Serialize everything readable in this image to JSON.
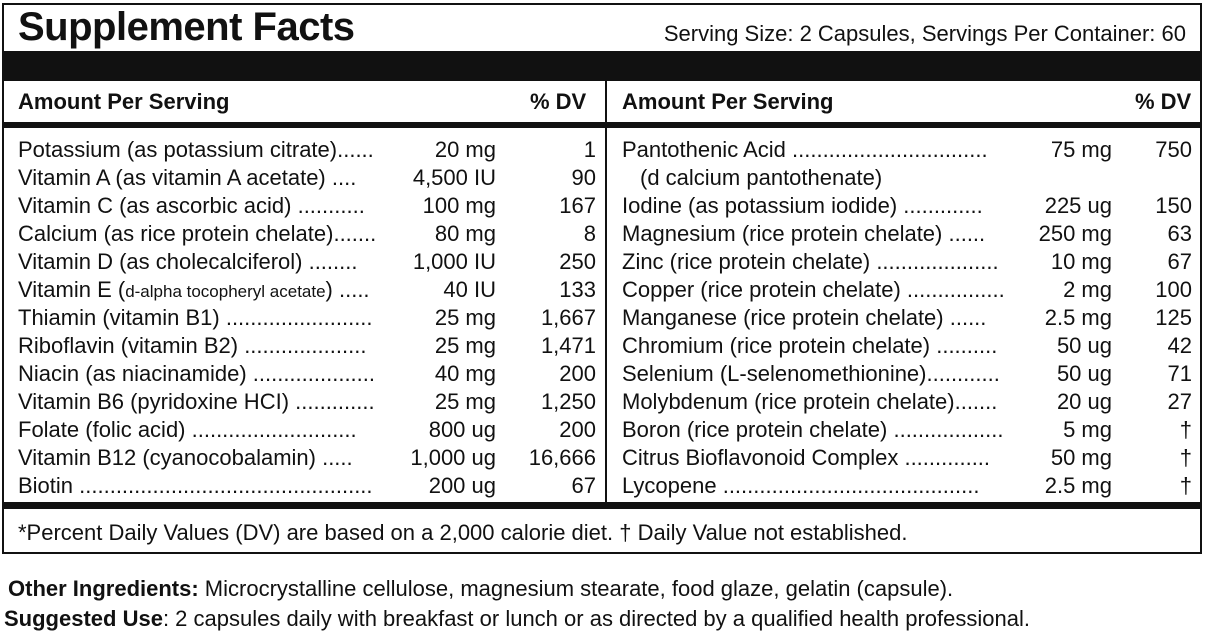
{
  "title": "Supplement Facts",
  "serving": "Serving Size: 2 Capsules,  Servings Per Container: 60",
  "headers": {
    "left_amount": "Amount Per Serving",
    "left_dv": "% DV",
    "right_amount": "Amount Per Serving",
    "right_dv": "% DV"
  },
  "left": [
    {
      "label": "Potassium (as potassium citrate)......",
      "amount": "20 mg",
      "dv": "1"
    },
    {
      "label": "Vitamin A (as vitamin A acetate) ....",
      "amount": "4,500 IU",
      "dv": "90"
    },
    {
      "label": "Vitamin C (as ascorbic acid) ...........",
      "amount": "100 mg",
      "dv": "167"
    },
    {
      "label": "Calcium (as rice protein chelate).......",
      "amount": "80 mg",
      "dv": "8"
    },
    {
      "label": "Vitamin D (as cholecalciferol) ........",
      "amount": "1,000 IU",
      "dv": "250"
    },
    {
      "label_main": "Vitamin E (",
      "label_small": "d-alpha tocopheryl acetate",
      "label_end": ") .....",
      "amount": "40 IU",
      "dv": "133"
    },
    {
      "label": "Thiamin (vitamin B1) ........................",
      "amount": "25 mg",
      "dv": "1,667"
    },
    {
      "label": "Riboflavin (vitamin B2) ....................",
      "amount": "25 mg",
      "dv": "1,471"
    },
    {
      "label": "Niacin (as niacinamide) ....................",
      "amount": "40 mg",
      "dv": "200"
    },
    {
      "label": "Vitamin B6 (pyridoxine HCI) .............",
      "amount": "25 mg",
      "dv": "1,250"
    },
    {
      "label": "Folate (folic acid) ...........................",
      "amount": "800 ug",
      "dv": "200"
    },
    {
      "label": "Vitamin B12 (cyanocobalamin) .....",
      "amount": "1,000 ug",
      "dv": "16,666"
    },
    {
      "label": "Biotin ................................................",
      "amount": "200 ug",
      "dv": "67"
    }
  ],
  "right": [
    {
      "label": "Pantothenic Acid ................................",
      "amount": "75 mg",
      "dv": "750"
    },
    {
      "label": "(d calcium pantothenate)",
      "amount": "",
      "dv": ""
    },
    {
      "label": "Iodine (as potassium iodide) .............",
      "amount": "225 ug",
      "dv": "150"
    },
    {
      "label": "Magnesium (rice protein chelate) ......",
      "amount": "250 mg",
      "dv": "63"
    },
    {
      "label": "Zinc (rice protein chelate) ....................",
      "amount": "10 mg",
      "dv": "67"
    },
    {
      "label": "Copper (rice protein chelate) ................",
      "amount": "2 mg",
      "dv": "100"
    },
    {
      "label": "Manganese (rice protein chelate) ......",
      "amount": "2.5 mg",
      "dv": "125"
    },
    {
      "label": "Chromium (rice protein chelate) ..........",
      "amount": "50 ug",
      "dv": "42"
    },
    {
      "label": "Selenium (L-selenomethionine)............",
      "amount": "50 ug",
      "dv": "71"
    },
    {
      "label": "Molybdenum (rice protein chelate).......",
      "amount": "20 ug",
      "dv": "27"
    },
    {
      "label": "Boron (rice protein chelate) ..................",
      "amount": "5 mg",
      "dv": "†"
    },
    {
      "label": "Citrus Bioflavonoid Complex ..............",
      "amount": "50 mg",
      "dv": "†"
    },
    {
      "label": "Lycopene ..........................................",
      "amount": "2.5 mg",
      "dv": "†"
    }
  ],
  "footnote": "*Percent Daily Values (DV) are based on a 2,000 calorie diet. † Daily Value not established.",
  "other_ingredients": {
    "key": "Other Ingredients:",
    "text": " Microcrystalline cellulose, magnesium stearate, food glaze, gelatin (capsule)."
  },
  "suggested_use": {
    "key": "Suggested Use",
    "text": ": 2 capsules daily with breakfast or lunch or as directed by a qualified health professional."
  }
}
